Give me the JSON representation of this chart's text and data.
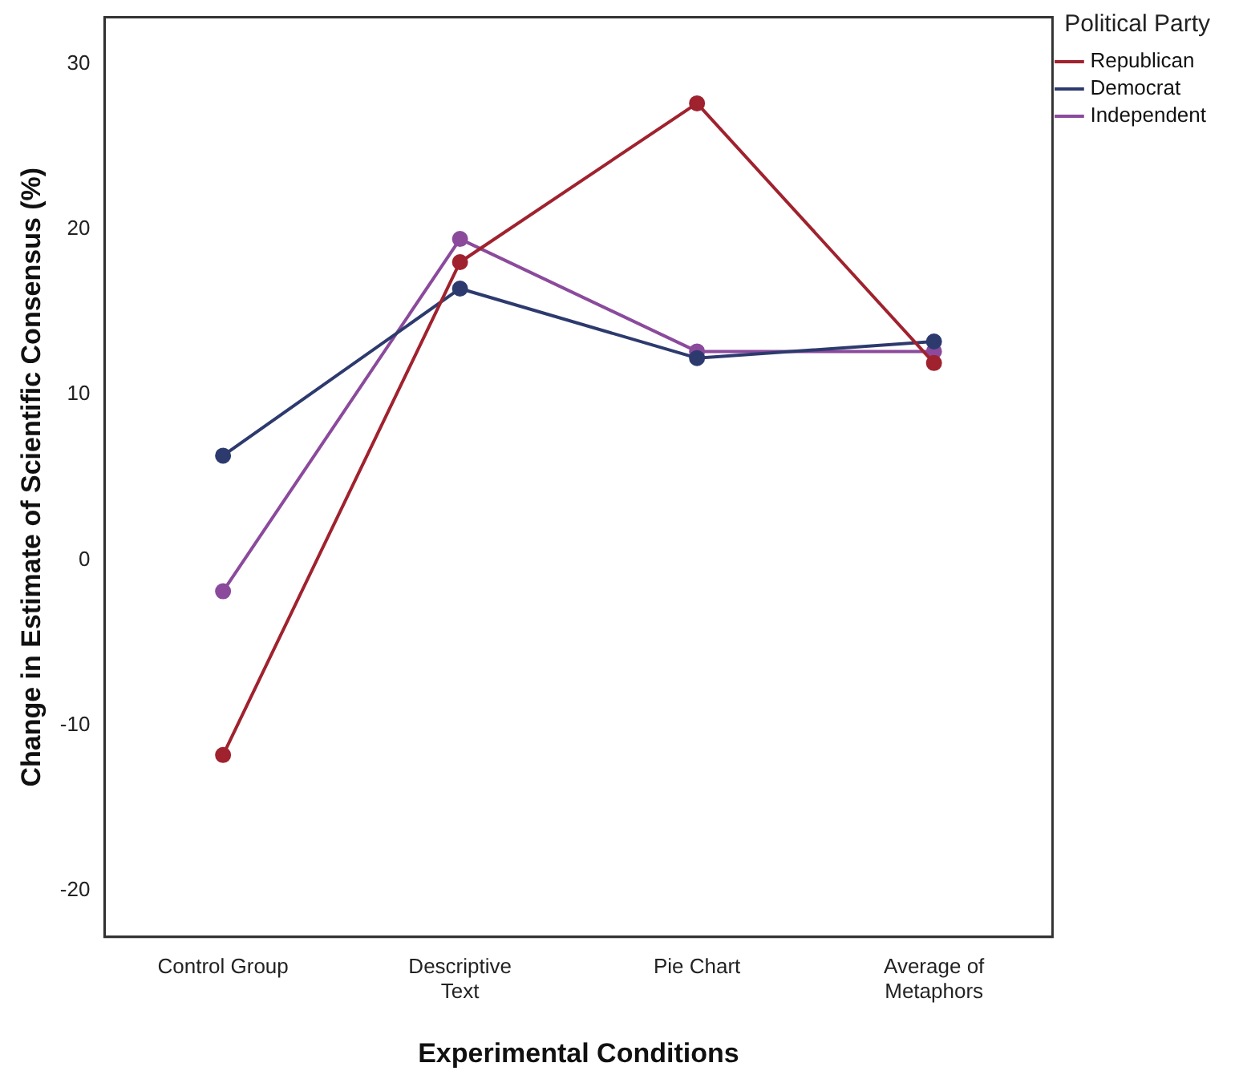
{
  "chart_data": {
    "type": "line",
    "xlabel": "Experimental Conditions",
    "ylabel": "Change in Estimate of Scientific Consensus (%)",
    "legend_title": "Political Party",
    "categories": [
      "Control Group",
      "Descriptive Text",
      "Pie Chart",
      "Average of Metaphors"
    ],
    "series": [
      {
        "name": "Republican",
        "color": "#a0222e",
        "values": [
          -11.8,
          18,
          27.6,
          11.9
        ]
      },
      {
        "name": "Democrat",
        "color": "#2d3a6e",
        "values": [
          6.3,
          16.4,
          12.2,
          13.2
        ]
      },
      {
        "name": "Independent",
        "color": "#8b4a9c",
        "values": [
          -1.9,
          19.4,
          12.6,
          12.6
        ]
      }
    ],
    "ylim": [
      -22.8,
      32.8
    ],
    "yticks": [
      -20,
      -10,
      0,
      10,
      20,
      30
    ],
    "grid": false,
    "legend": "top right",
    "marker": "circle",
    "line_style": "solid"
  }
}
